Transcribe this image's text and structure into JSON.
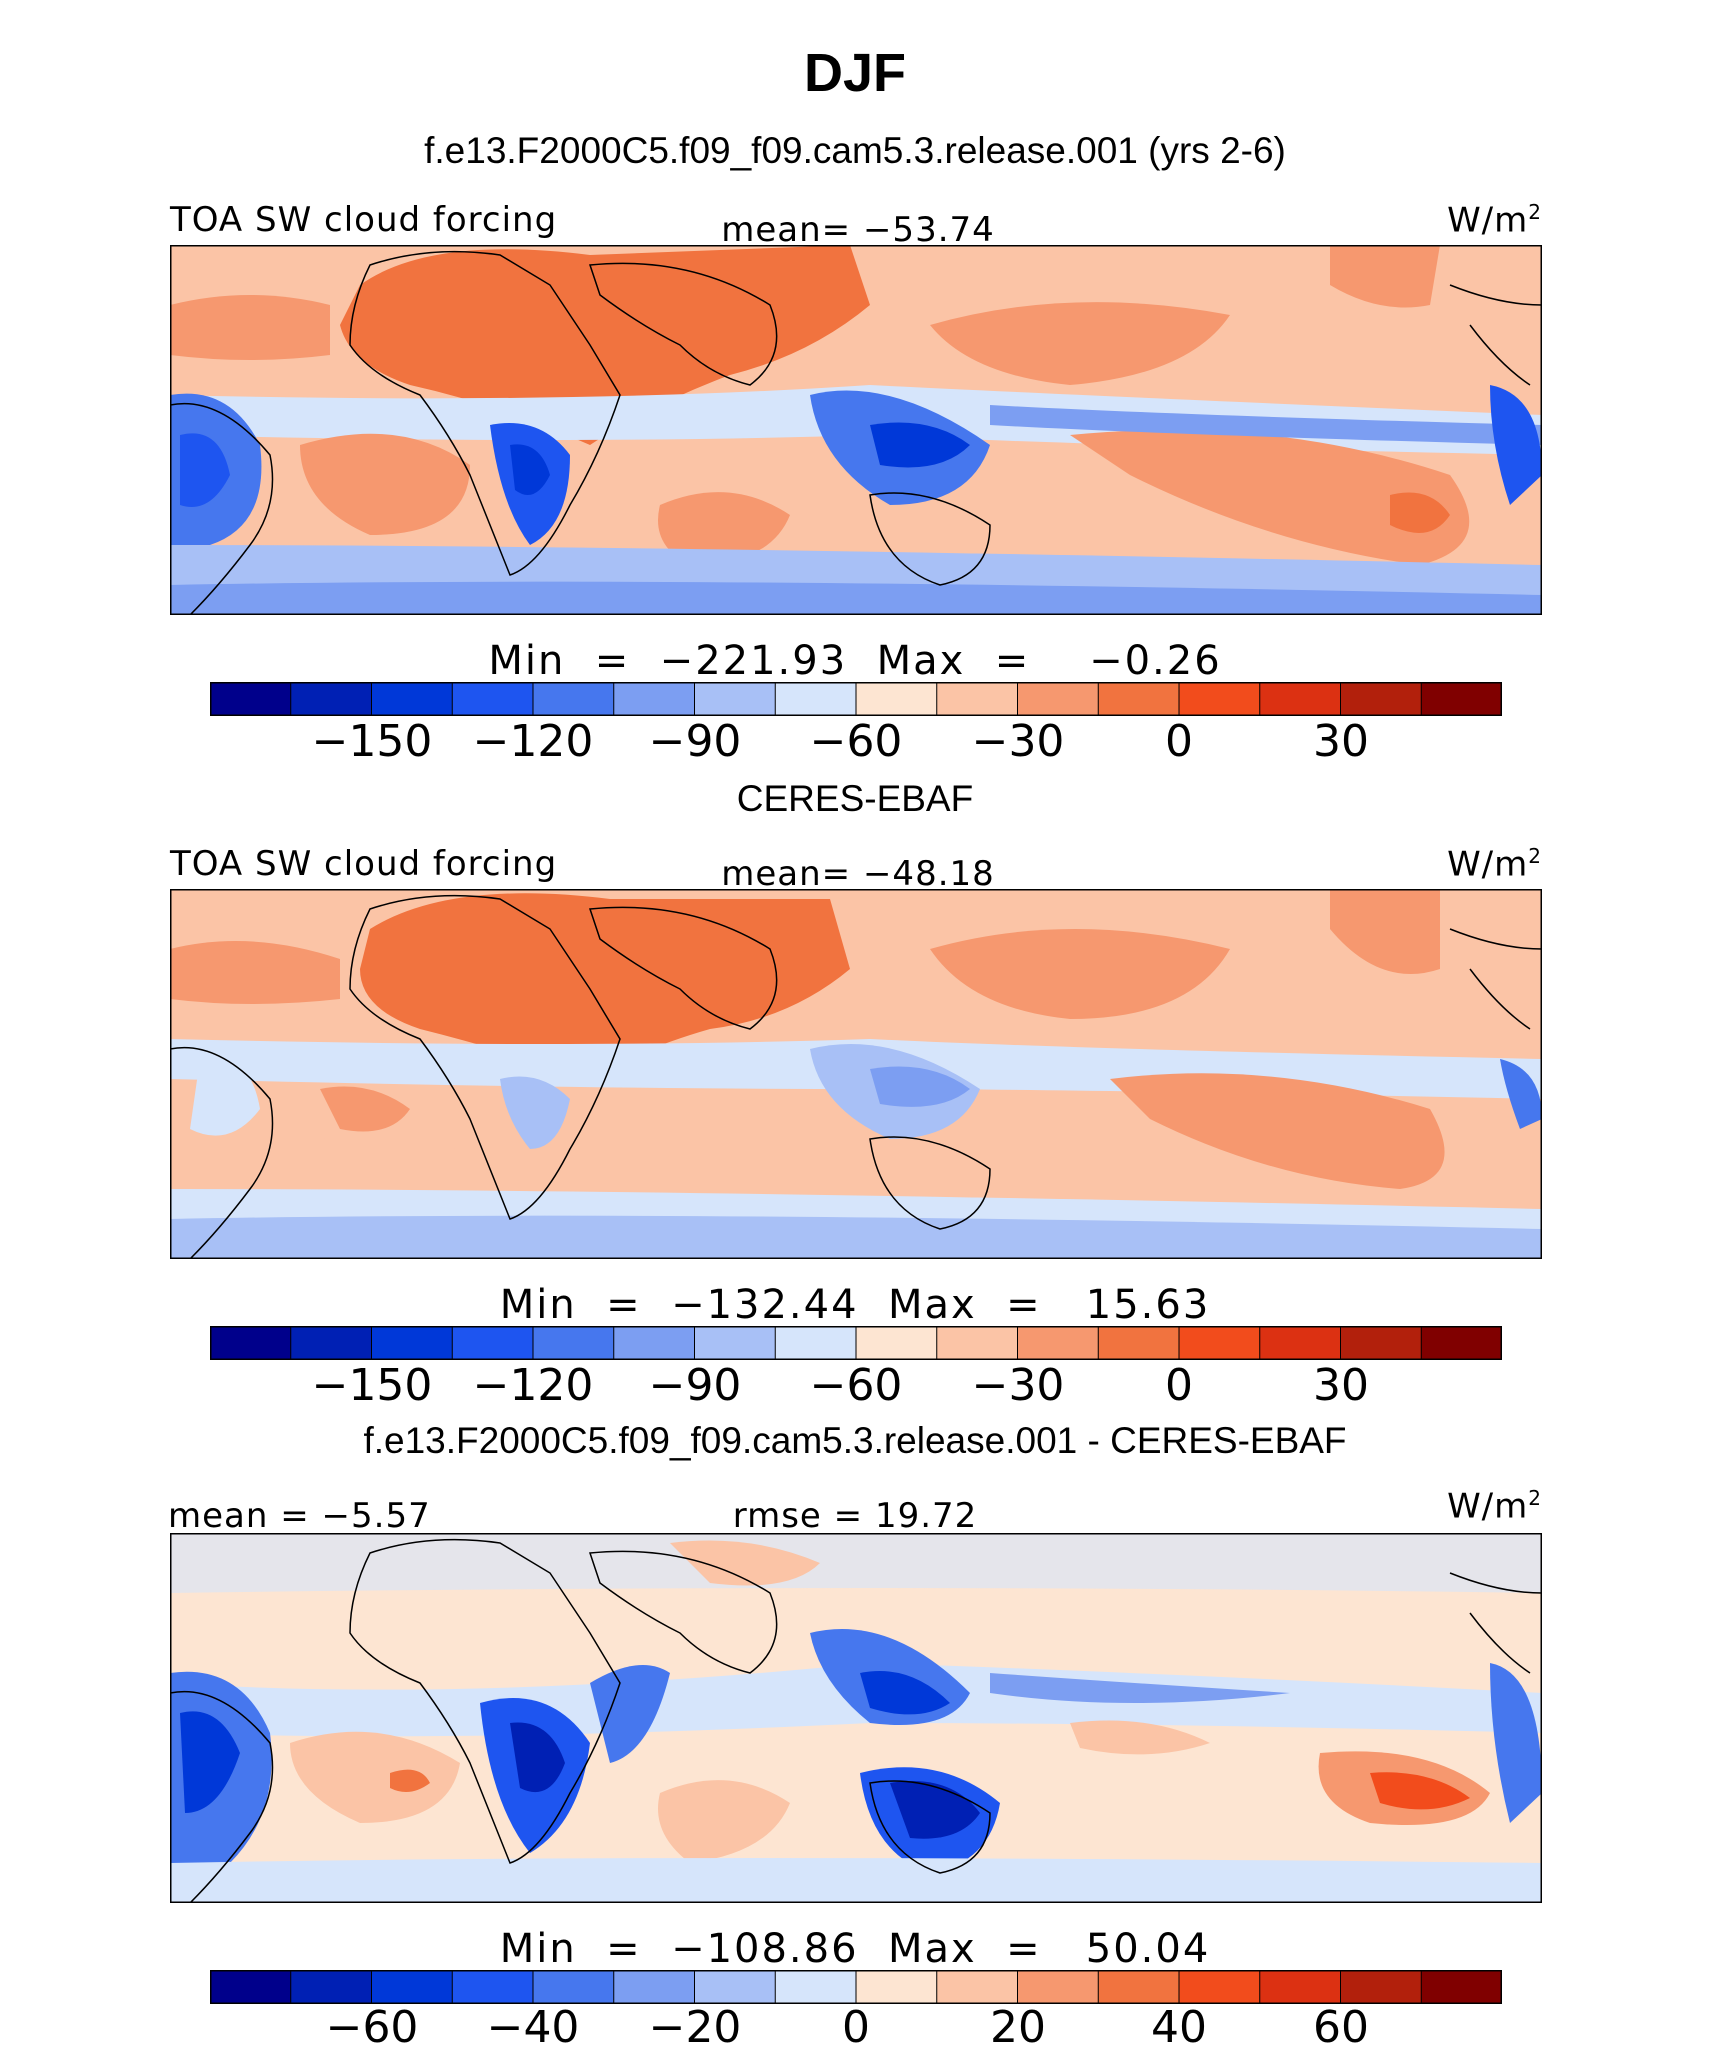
{
  "figure": {
    "title": "DJF",
    "colors": [
      "#00008b",
      "#0020b4",
      "#0038d8",
      "#1e55f0",
      "#4677ee",
      "#7c9ef2",
      "#a8c0f6",
      "#d6e5fb",
      "#fde5d2",
      "#fbc4a6",
      "#f6986f",
      "#f1733f",
      "#f24c1c",
      "#dc3112",
      "#b2200c",
      "#800000"
    ]
  },
  "panels": [
    {
      "subtitle": "f.e13.F2000C5.f09_f09.cam5.3.release.001 (yrs 2-6)",
      "left_label": "TOA SW cloud forcing",
      "center_label": "mean= −53.74",
      "units": "W/m",
      "units_sup": "2",
      "min_max": "Min  =  −221.93  Max  =    −0.26",
      "colorbar_ticks": [
        "−150",
        "−120",
        "−90",
        "−60",
        "−30",
        "0",
        "30"
      ]
    },
    {
      "subtitle": "CERES-EBAF",
      "left_label": "TOA SW cloud forcing",
      "center_label": "mean= −48.18",
      "units": "W/m",
      "units_sup": "2",
      "min_max": "Min  =  −132.44  Max  =   15.63",
      "colorbar_ticks": [
        "−150",
        "−120",
        "−90",
        "−60",
        "−30",
        "0",
        "30"
      ]
    },
    {
      "subtitle": "f.e13.F2000C5.f09_f09.cam5.3.release.001 - CERES-EBAF",
      "left_label": "mean  =   −5.57",
      "center_label": "rmse  =   19.72",
      "units": "W/m",
      "units_sup": "2",
      "min_max": "Min  =  −108.86  Max  =   50.04",
      "colorbar_ticks": [
        "−60",
        "−40",
        "−20",
        "0",
        "20",
        "40",
        "60"
      ]
    }
  ]
}
